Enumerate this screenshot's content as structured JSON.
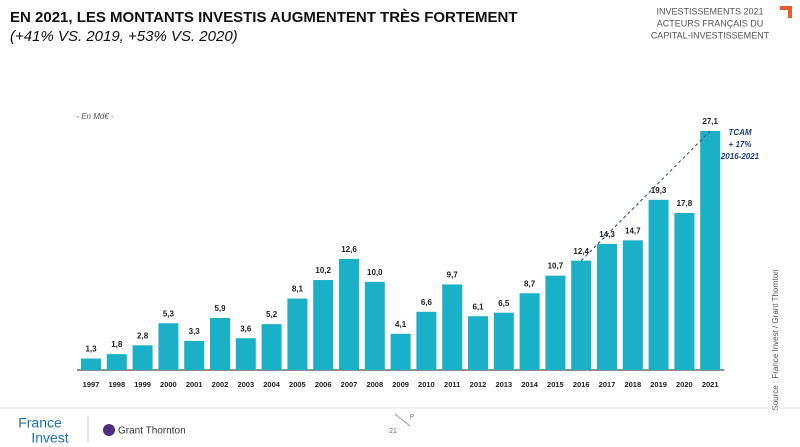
{
  "header": {
    "lines": [
      "INVESTISSEMENTS 2021",
      "ACTEURS FRANÇAIS DU",
      "CAPITAL-INVESTISSEMENT"
    ]
  },
  "chart_data": {
    "type": "bar",
    "title": "EN 2021, LES MONTANTS INVESTIS AUGMENTENT TRÈS FORTEMENT",
    "subtitle": "(+41% VS. 2019, +53% VS. 2020)",
    "unit_label": "- En Md€ -",
    "categories": [
      "1997",
      "1998",
      "1999",
      "2000",
      "2001",
      "2002",
      "2003",
      "2004",
      "2005",
      "2006",
      "2007",
      "2008",
      "2009",
      "2010",
      "2011",
      "2012",
      "2013",
      "2014",
      "2015",
      "2016",
      "2017",
      "2018",
      "2019",
      "2020",
      "2021"
    ],
    "values": [
      1.3,
      1.8,
      2.8,
      5.3,
      3.3,
      5.9,
      3.6,
      5.2,
      8.1,
      10.2,
      12.6,
      10.0,
      4.1,
      6.6,
      9.7,
      6.1,
      6.5,
      8.7,
      10.7,
      12.4,
      14.3,
      14.7,
      19.3,
      17.8,
      27.1
    ],
    "value_labels": [
      "1,3",
      "1,8",
      "2,8",
      "5,3",
      "3,3",
      "5,9",
      "3,6",
      "5,2",
      "8,1",
      "10,2",
      "12,6",
      "10,0",
      "4,1",
      "6,6",
      "9,7",
      "6,1",
      "6,5",
      "8,7",
      "10,7",
      "12,4",
      "14,3",
      "14,7",
      "19,3",
      "17,8",
      "27,1"
    ],
    "color": "#1ab0c7",
    "annotation": [
      "TCAM",
      "+ 17%",
      "2016-2021"
    ],
    "source": "Source : France Invest / Grant Thornton"
  },
  "footer": {
    "logo_top": "France",
    "logo_bottom": "Invest",
    "partner": "Grant Thornton",
    "page": "21",
    "mark": "P"
  }
}
